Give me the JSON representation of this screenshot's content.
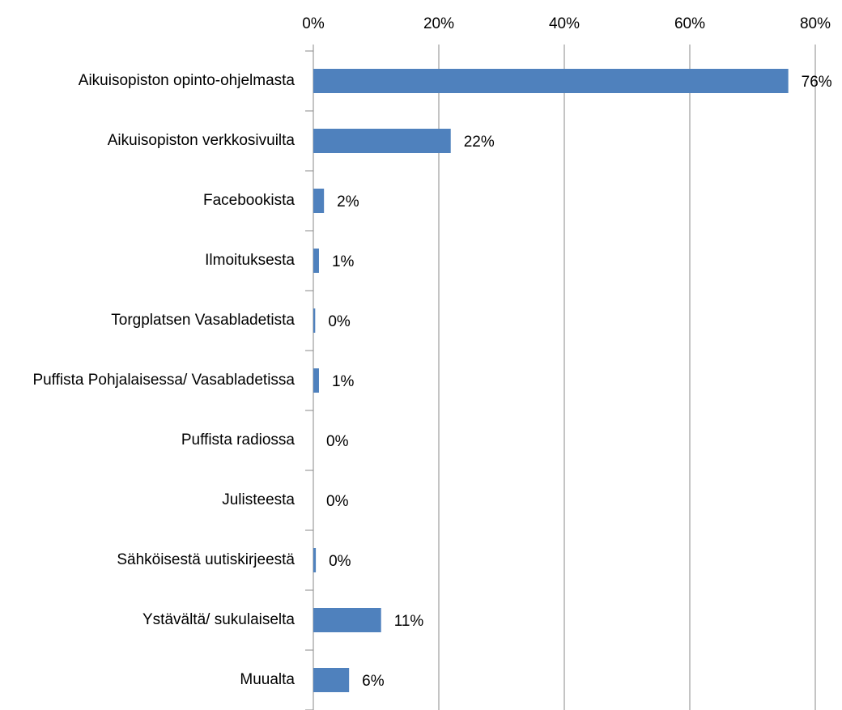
{
  "chart_data": {
    "type": "bar",
    "orientation": "horizontal",
    "categories": [
      "Aikuisopiston opinto-ohjelmasta",
      "Aikuisopiston verkkosivuilta",
      "Facebookista",
      "Ilmoituksesta",
      "Torgplatsen Vasabladetista",
      "Puffista Pohjalaisessa/ Vasabladetissa",
      "Puffista radiossa",
      "Julisteesta",
      "Sähköisestä uutiskirjeestä",
      "Ystävältä/ sukulaiselta",
      "Muualta"
    ],
    "values": [
      75.7,
      21.9,
      1.7,
      0.9,
      0.3,
      0.9,
      0,
      0,
      0.4,
      10.8,
      5.7
    ],
    "value_labels": [
      "76%",
      "22%",
      "2%",
      "1%",
      "0%",
      "1%",
      "0%",
      "0%",
      "0%",
      "11%",
      "6%"
    ],
    "color": "#4f81bd",
    "xlim": [
      0,
      80
    ],
    "xticks": [
      {
        "value": 0,
        "label": "0%"
      },
      {
        "value": 20,
        "label": "20%"
      },
      {
        "value": 40,
        "label": "40%"
      },
      {
        "value": 60,
        "label": "60%"
      },
      {
        "value": 80,
        "label": "80%"
      }
    ],
    "grid": true
  }
}
